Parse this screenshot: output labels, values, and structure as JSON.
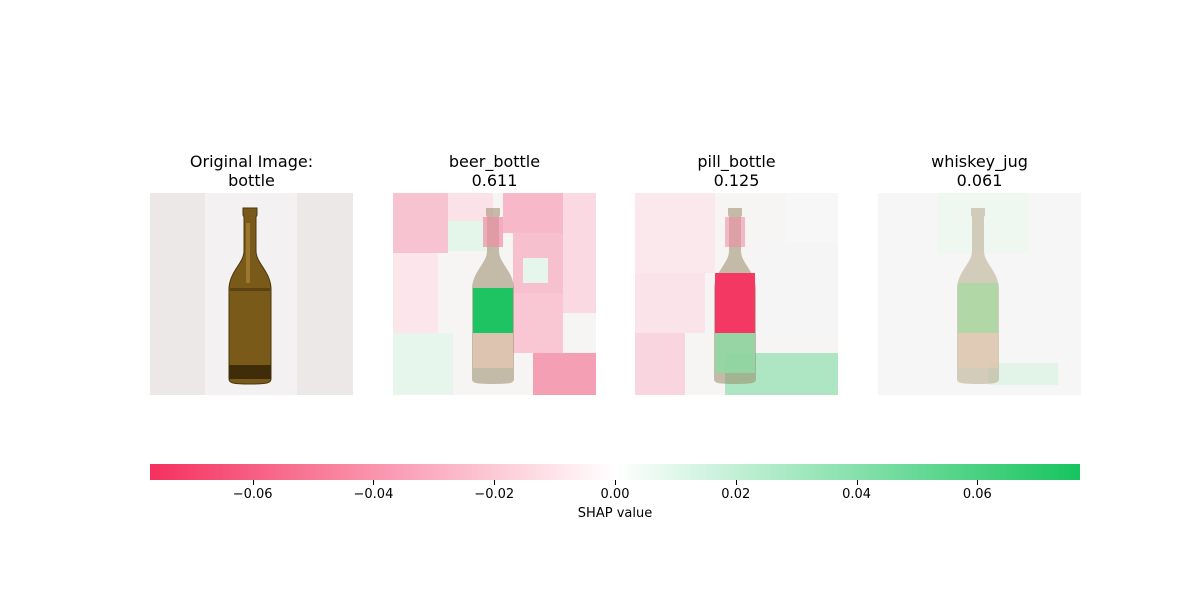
{
  "panels": [
    {
      "title": "Original Image:\nbottle"
    },
    {
      "title": "beer_bottle\n0.611"
    },
    {
      "title": "pill_bottle\n0.125"
    },
    {
      "title": "whiskey_jug\n0.061"
    }
  ],
  "colors": {
    "negative": "#f5305f",
    "positive": "#16c45e",
    "neutral": "#ffffff",
    "background": "#ede8e8",
    "bottle_glass": "#7a5a18",
    "bottle_dark": "#3f2c09"
  },
  "chart_data": {
    "type": "heatmap",
    "colorbar": {
      "label": "SHAP value",
      "range": [
        -0.077,
        0.077
      ],
      "ticks": [
        -0.06,
        -0.04,
        -0.02,
        0.0,
        0.02,
        0.04,
        0.06
      ],
      "tick_labels": [
        "−0.06",
        "−0.04",
        "−0.02",
        "0.00",
        "0.02",
        "0.04",
        "0.06"
      ]
    },
    "series": [
      {
        "name": "beer_bottle",
        "probability": 0.611
      },
      {
        "name": "pill_bottle",
        "probability": 0.125
      },
      {
        "name": "whiskey_jug",
        "probability": 0.061
      }
    ]
  }
}
